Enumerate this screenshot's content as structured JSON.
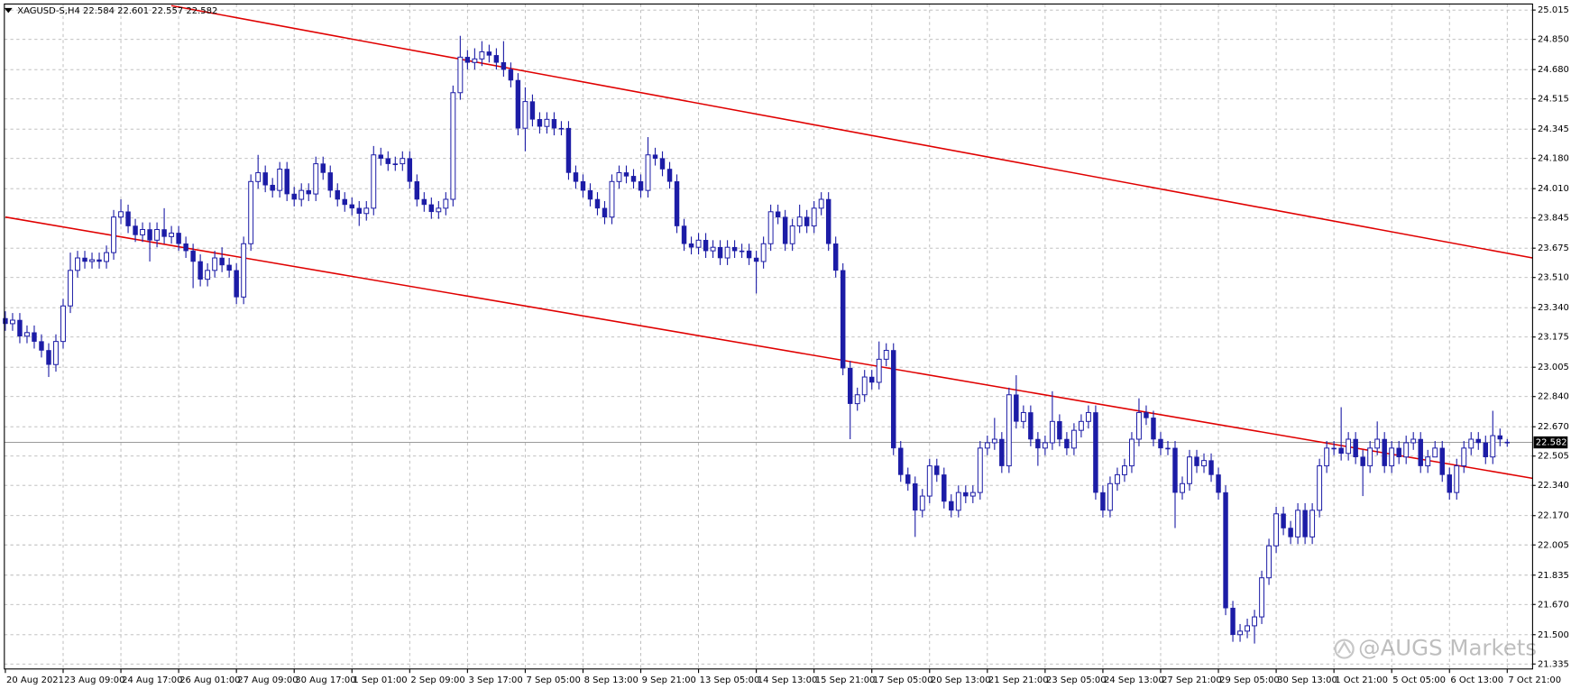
{
  "chart_data": {
    "type": "candlestick",
    "symbol": "XAGUSD-S,H4",
    "watermark": "@AUGS Markets",
    "color": "#1c1ca6",
    "grid": true,
    "ylim": [
      21.307,
      25.049
    ],
    "yticks": [
      25.015,
      {
        "value": 24.85,
        "label": "24.850"
      },
      {
        "value": 24.68,
        "label": "24.680"
      },
      24.515,
      24.345,
      {
        "value": 24.18,
        "label": "24.180"
      },
      {
        "value": 24.01,
        "label": "24.010"
      },
      23.845,
      23.675,
      {
        "value": 23.51,
        "label": "23.510"
      },
      {
        "value": 23.34,
        "label": "23.340"
      },
      23.175,
      23.005,
      {
        "value": 22.84,
        "label": "22.840"
      },
      {
        "value": 22.67,
        "label": "22.670"
      },
      22.505,
      {
        "value": 22.34,
        "label": "22.340"
      },
      {
        "value": 22.17,
        "label": "22.170"
      },
      22.005,
      21.835,
      {
        "value": 21.67,
        "label": "21.670"
      },
      {
        "value": 21.5,
        "label": "21.500"
      },
      21.335
    ],
    "categories": [
      "20 Aug 2021",
      null,
      null,
      null,
      null,
      null,
      null,
      null,
      "23 Aug 09:00",
      null,
      null,
      null,
      null,
      null,
      null,
      null,
      "24 Aug 17:00",
      null,
      null,
      null,
      null,
      null,
      null,
      null,
      "26 Aug 01:00",
      null,
      null,
      null,
      null,
      null,
      null,
      null,
      "27 Aug 09:00",
      null,
      null,
      null,
      null,
      null,
      null,
      null,
      "30 Aug 17:00",
      null,
      null,
      null,
      null,
      null,
      null,
      null,
      "1 Sep 01:00",
      null,
      null,
      null,
      null,
      null,
      null,
      null,
      "2 Sep 09:00",
      null,
      null,
      null,
      null,
      null,
      null,
      null,
      "3 Sep 17:00",
      null,
      null,
      null,
      null,
      null,
      null,
      null,
      "7 Sep 05:00",
      null,
      null,
      null,
      null,
      null,
      null,
      null,
      "8 Sep 13:00",
      null,
      null,
      null,
      null,
      null,
      null,
      null,
      "9 Sep 21:00",
      null,
      null,
      null,
      null,
      null,
      null,
      null,
      "13 Sep 05:00",
      null,
      null,
      null,
      null,
      null,
      null,
      null,
      "14 Sep 13:00",
      null,
      null,
      null,
      null,
      null,
      null,
      null,
      "15 Sep 21:00",
      null,
      null,
      null,
      null,
      null,
      null,
      null,
      "17 Sep 05:00",
      null,
      null,
      null,
      null,
      null,
      null,
      null,
      "20 Sep 13:00",
      null,
      null,
      null,
      null,
      null,
      null,
      null,
      "21 Sep 21:00",
      null,
      null,
      null,
      null,
      null,
      null,
      null,
      "23 Sep 05:00",
      null,
      null,
      null,
      null,
      null,
      null,
      null,
      "24 Sep 13:00",
      null,
      null,
      null,
      null,
      null,
      null,
      null,
      "27 Sep 21:00",
      null,
      null,
      null,
      null,
      null,
      null,
      null,
      "29 Sep 05:00",
      null,
      null,
      null,
      null,
      null,
      null,
      null,
      "30 Sep 13:00",
      null,
      null,
      null,
      null,
      null,
      null,
      null,
      "1 Oct 21:00",
      null,
      null,
      null,
      null,
      null,
      null,
      null,
      "5 Oct 05:00",
      null,
      null,
      null,
      null,
      null,
      null,
      null,
      "6 Oct 13:00",
      null,
      null,
      null,
      null,
      null,
      null,
      null,
      "7 Oct 21:00"
    ],
    "open": [
      23.28,
      23.25,
      23.27,
      23.18,
      23.2,
      23.15,
      23.1,
      23.02,
      23.15,
      23.35,
      23.55,
      23.62,
      23.6,
      23.61,
      23.6,
      23.65,
      23.85,
      23.88,
      23.8,
      23.75,
      23.78,
      23.72,
      23.78,
      23.74,
      23.76,
      23.7,
      23.66,
      23.6,
      23.5,
      23.55,
      23.62,
      23.58,
      23.55,
      23.4,
      23.7,
      24.05,
      24.1,
      24.03,
      24.0,
      24.12,
      23.98,
      23.95,
      24.0,
      23.98,
      24.15,
      24.1,
      24.0,
      23.95,
      23.92,
      23.9,
      23.87,
      23.9,
      24.2,
      24.18,
      24.15,
      24.15,
      24.18,
      24.05,
      23.95,
      23.92,
      23.88,
      23.9,
      23.95,
      24.55,
      24.75,
      24.72,
      24.74,
      24.78,
      24.76,
      24.72,
      24.68,
      24.62,
      24.35,
      24.5,
      24.4,
      24.36,
      24.4,
      24.35,
      24.35,
      24.1,
      24.05,
      24.0,
      23.95,
      23.9,
      23.85,
      24.05,
      24.1,
      24.08,
      24.05,
      24.0,
      24.2,
      24.18,
      24.12,
      24.05,
      23.8,
      23.7,
      23.68,
      23.72,
      23.66,
      23.68,
      23.62,
      23.68,
      23.66,
      23.66,
      23.62,
      23.6,
      23.7,
      23.88,
      23.85,
      23.7,
      23.8,
      23.85,
      23.8,
      23.9,
      23.95,
      23.7,
      23.55,
      23.0,
      22.8,
      22.85,
      22.95,
      22.92,
      23.05,
      23.1,
      22.55,
      22.4,
      22.35,
      22.2,
      22.28,
      22.45,
      22.4,
      22.25,
      22.2,
      22.3,
      22.28,
      22.3,
      22.55,
      22.58,
      22.6,
      22.45,
      22.85,
      22.7,
      22.75,
      22.6,
      22.55,
      22.58,
      22.7,
      22.6,
      22.55,
      22.65,
      22.7,
      22.75,
      22.3,
      22.2,
      22.35,
      22.4,
      22.45,
      22.6,
      22.75,
      22.72,
      22.6,
      22.55,
      22.55,
      22.3,
      22.35,
      22.5,
      22.45,
      22.48,
      22.4,
      22.3,
      21.65,
      21.5,
      21.52,
      21.55,
      21.6,
      21.82,
      22.0,
      22.18,
      22.1,
      22.05,
      22.2,
      22.05,
      22.2,
      22.45,
      22.55,
      22.55,
      22.52,
      22.6,
      22.5,
      22.45,
      22.55,
      22.6,
      22.45,
      22.55,
      22.5,
      22.58,
      22.6,
      22.45,
      22.5,
      22.55,
      22.4,
      22.3,
      22.45,
      22.55,
      22.6,
      22.58,
      22.5,
      22.62,
      22.584
    ],
    "high": [
      23.32,
      23.31,
      23.31,
      23.24,
      23.24,
      23.19,
      23.14,
      23.19,
      23.39,
      23.65,
      23.66,
      23.66,
      23.65,
      23.65,
      23.69,
      23.89,
      23.95,
      23.92,
      23.84,
      23.82,
      23.82,
      23.82,
      23.9,
      23.8,
      23.8,
      23.74,
      23.7,
      23.64,
      23.59,
      23.66,
      23.68,
      23.62,
      23.59,
      23.74,
      24.09,
      24.2,
      24.14,
      24.07,
      24.16,
      24.16,
      24.02,
      24.04,
      24.04,
      24.19,
      24.19,
      24.14,
      24.04,
      23.99,
      23.96,
      23.94,
      23.94,
      24.25,
      24.24,
      24.22,
      24.19,
      24.22,
      24.22,
      24.09,
      23.99,
      23.96,
      23.94,
      23.99,
      24.59,
      24.87,
      24.79,
      24.8,
      24.84,
      24.82,
      24.8,
      24.84,
      24.72,
      24.66,
      24.58,
      24.54,
      24.44,
      24.44,
      24.44,
      24.39,
      24.39,
      24.14,
      24.09,
      24.04,
      23.99,
      23.94,
      24.09,
      24.14,
      24.14,
      24.12,
      24.09,
      24.3,
      24.24,
      24.22,
      24.16,
      24.09,
      23.84,
      23.74,
      23.76,
      23.76,
      23.72,
      23.72,
      23.72,
      23.72,
      23.7,
      23.7,
      23.66,
      23.74,
      23.92,
      23.92,
      23.89,
      23.84,
      23.92,
      23.89,
      23.94,
      23.99,
      23.99,
      23.74,
      23.59,
      23.04,
      22.89,
      22.99,
      22.99,
      23.15,
      23.14,
      23.14,
      22.59,
      22.44,
      22.39,
      22.32,
      22.49,
      22.49,
      22.44,
      22.29,
      22.34,
      22.34,
      22.34,
      22.59,
      22.62,
      22.72,
      22.64,
      22.89,
      22.96,
      22.79,
      22.79,
      22.64,
      22.62,
      22.87,
      22.74,
      22.64,
      22.69,
      22.74,
      22.79,
      22.79,
      22.34,
      22.39,
      22.44,
      22.49,
      22.64,
      22.83,
      22.79,
      22.76,
      22.64,
      22.59,
      22.59,
      22.39,
      22.54,
      22.54,
      22.52,
      22.52,
      22.44,
      22.34,
      21.69,
      21.56,
      21.59,
      21.64,
      21.86,
      22.04,
      22.22,
      22.22,
      22.14,
      22.24,
      22.24,
      22.24,
      22.49,
      22.59,
      22.59,
      22.78,
      22.64,
      22.64,
      22.54,
      22.59,
      22.7,
      22.64,
      22.59,
      22.59,
      22.62,
      22.64,
      22.64,
      22.54,
      22.59,
      22.59,
      22.44,
      22.49,
      22.59,
      22.64,
      22.64,
      22.62,
      22.76,
      22.66,
      22.601
    ],
    "low": [
      23.21,
      23.21,
      23.14,
      23.14,
      23.11,
      23.06,
      22.95,
      22.98,
      23.11,
      23.31,
      23.51,
      23.56,
      23.56,
      23.56,
      23.56,
      23.61,
      23.81,
      23.76,
      23.71,
      23.71,
      23.6,
      23.68,
      23.7,
      23.7,
      23.66,
      23.62,
      23.45,
      23.46,
      23.46,
      23.51,
      23.54,
      23.51,
      23.36,
      23.36,
      23.66,
      24.01,
      23.99,
      23.96,
      23.96,
      23.94,
      23.91,
      23.91,
      23.94,
      23.94,
      24.06,
      23.96,
      23.91,
      23.88,
      23.86,
      23.8,
      23.83,
      23.86,
      24.14,
      24.11,
      24.11,
      24.11,
      24.01,
      23.91,
      23.88,
      23.84,
      23.84,
      23.86,
      23.91,
      24.51,
      24.68,
      24.68,
      24.7,
      24.72,
      24.68,
      24.64,
      24.58,
      24.31,
      24.22,
      24.36,
      24.32,
      24.32,
      24.31,
      24.31,
      24.06,
      24.01,
      23.96,
      23.91,
      23.86,
      23.81,
      23.81,
      24.01,
      24.04,
      24.01,
      23.96,
      23.96,
      24.14,
      24.08,
      24.01,
      23.76,
      23.66,
      23.64,
      23.64,
      23.62,
      23.62,
      23.58,
      23.58,
      23.62,
      23.62,
      23.58,
      23.42,
      23.56,
      23.66,
      23.81,
      23.66,
      23.66,
      23.76,
      23.76,
      23.76,
      23.86,
      23.66,
      23.51,
      22.96,
      22.6,
      22.76,
      22.81,
      22.88,
      22.88,
      23.01,
      22.51,
      22.36,
      22.31,
      22.05,
      22.16,
      22.24,
      22.36,
      22.21,
      22.16,
      22.16,
      22.24,
      22.24,
      22.26,
      22.51,
      22.54,
      22.41,
      22.41,
      22.66,
      22.66,
      22.56,
      22.45,
      22.51,
      22.54,
      22.56,
      22.51,
      22.51,
      22.61,
      22.66,
      22.26,
      22.16,
      22.16,
      22.31,
      22.36,
      22.41,
      22.56,
      22.68,
      22.56,
      22.51,
      22.51,
      22.1,
      22.26,
      22.31,
      22.41,
      22.41,
      22.36,
      22.26,
      21.61,
      21.46,
      21.46,
      21.48,
      21.45,
      21.56,
      21.78,
      21.96,
      22.06,
      22.01,
      22.01,
      22.01,
      22.01,
      22.16,
      22.41,
      22.51,
      22.48,
      22.48,
      22.46,
      22.28,
      22.41,
      22.51,
      22.41,
      22.41,
      22.46,
      22.46,
      22.54,
      22.41,
      22.41,
      22.51,
      22.36,
      22.26,
      22.26,
      22.41,
      22.51,
      22.54,
      22.46,
      22.46,
      22.56,
      22.557
    ],
    "close": [
      23.25,
      23.27,
      23.18,
      23.2,
      23.15,
      23.1,
      23.02,
      23.15,
      23.35,
      23.55,
      23.62,
      23.6,
      23.61,
      23.6,
      23.65,
      23.85,
      23.88,
      23.8,
      23.75,
      23.78,
      23.72,
      23.78,
      23.74,
      23.76,
      23.7,
      23.66,
      23.6,
      23.5,
      23.55,
      23.62,
      23.58,
      23.55,
      23.4,
      23.7,
      24.05,
      24.1,
      24.03,
      24.0,
      24.12,
      23.98,
      23.95,
      24.0,
      23.98,
      24.15,
      24.1,
      24.0,
      23.95,
      23.92,
      23.9,
      23.87,
      23.9,
      24.2,
      24.18,
      24.15,
      24.15,
      24.18,
      24.05,
      23.95,
      23.92,
      23.88,
      23.9,
      23.95,
      24.55,
      24.75,
      24.72,
      24.74,
      24.78,
      24.76,
      24.72,
      24.68,
      24.62,
      24.35,
      24.5,
      24.4,
      24.36,
      24.4,
      24.35,
      24.35,
      24.1,
      24.05,
      24.0,
      23.95,
      23.9,
      23.85,
      24.05,
      24.1,
      24.08,
      24.05,
      24.0,
      24.2,
      24.18,
      24.12,
      24.05,
      23.8,
      23.7,
      23.68,
      23.72,
      23.66,
      23.68,
      23.62,
      23.68,
      23.66,
      23.66,
      23.62,
      23.6,
      23.7,
      23.88,
      23.85,
      23.7,
      23.8,
      23.85,
      23.8,
      23.9,
      23.95,
      23.7,
      23.55,
      23.0,
      22.8,
      22.85,
      22.95,
      22.92,
      23.05,
      23.1,
      22.55,
      22.4,
      22.35,
      22.2,
      22.28,
      22.45,
      22.4,
      22.25,
      22.2,
      22.3,
      22.28,
      22.3,
      22.55,
      22.58,
      22.6,
      22.45,
      22.85,
      22.7,
      22.75,
      22.6,
      22.55,
      22.58,
      22.7,
      22.6,
      22.55,
      22.65,
      22.7,
      22.75,
      22.3,
      22.2,
      22.35,
      22.4,
      22.45,
      22.6,
      22.75,
      22.72,
      22.6,
      22.55,
      22.55,
      22.3,
      22.35,
      22.5,
      22.45,
      22.48,
      22.4,
      22.3,
      21.65,
      21.5,
      21.52,
      21.55,
      21.6,
      21.82,
      22.0,
      22.18,
      22.1,
      22.05,
      22.2,
      22.05,
      22.2,
      22.45,
      22.55,
      22.55,
      22.52,
      22.6,
      22.5,
      22.45,
      22.55,
      22.6,
      22.45,
      22.55,
      22.5,
      22.58,
      22.6,
      22.45,
      22.5,
      22.55,
      22.4,
      22.3,
      22.45,
      22.55,
      22.6,
      22.58,
      22.5,
      22.62,
      22.6,
      22.582
    ],
    "trendlines": [
      {
        "color": "#e00000",
        "x": [
          23,
          211.5
        ],
        "y": [
          25.04,
          23.62
        ]
      },
      {
        "color": "#e00000",
        "x": [
          0,
          211.5
        ],
        "y": [
          23.85,
          22.38
        ]
      }
    ]
  }
}
